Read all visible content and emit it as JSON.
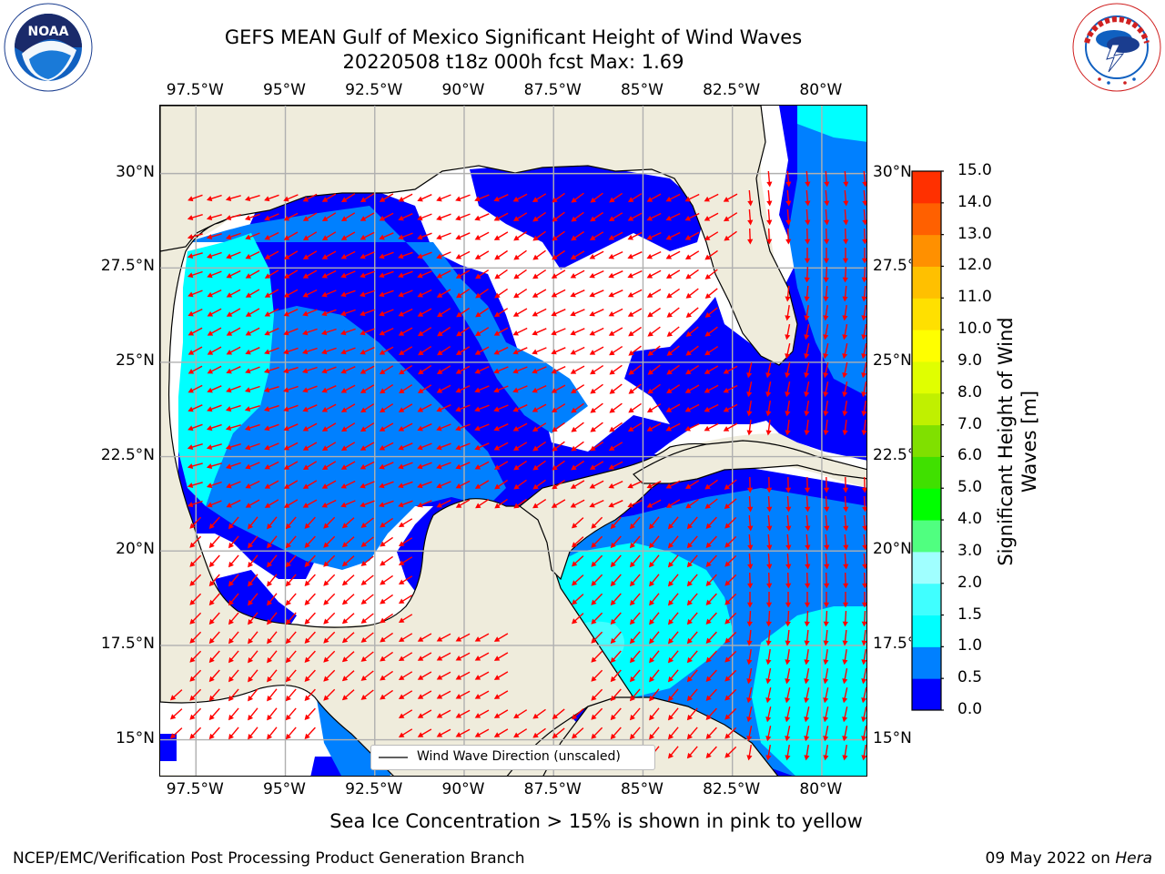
{
  "title": {
    "line1": "GEFS MEAN Gulf of Mexico Significant Height of Wind Waves",
    "line2": "20220508 t18z 000h fcst   Max: 1.69"
  },
  "logos": {
    "left": {
      "text": "NOAA",
      "ring_text": "NATIONAL OCEANIC AND ATMOSPHERIC ADMINISTRATION · U.S. DEPARTMENT OF COMMERCE"
    },
    "right": {
      "ring_text": "NATIONAL WEATHER SERVICE"
    }
  },
  "map": {
    "lon_range": [
      -98.5,
      -78.7
    ],
    "lat_range": [
      14.0,
      31.8
    ],
    "lon_ticks": [
      "97.5°W",
      "95°W",
      "92.5°W",
      "90°W",
      "87.5°W",
      "85°W",
      "82.5°W",
      "80°W"
    ],
    "lon_tick_values": [
      -97.5,
      -95,
      -92.5,
      -90,
      -87.5,
      -85,
      -82.5,
      -80
    ],
    "lat_ticks": [
      "15°N",
      "17.5°N",
      "20°N",
      "22.5°N",
      "25°N",
      "27.5°N",
      "30°N"
    ],
    "lat_tick_values": [
      15,
      17.5,
      20,
      22.5,
      25,
      27.5,
      30
    ],
    "gridlines": true,
    "colors": {
      "land": "#efecdc",
      "ocean_none": "#ffffff",
      "arrows": "#ff0000",
      "grid": "#b0b0b0"
    }
  },
  "legend": {
    "label": "Wind Wave Direction (unscaled)",
    "placement": "bottom-center"
  },
  "colorbar": {
    "label": "Significant Height of Wind Waves [m]",
    "ticks": [
      "0.0",
      "0.5",
      "1.0",
      "1.5",
      "2.0",
      "3.0",
      "4.0",
      "5.0",
      "6.0",
      "7.0",
      "8.0",
      "9.0",
      "10.0",
      "11.0",
      "12.0",
      "13.0",
      "14.0",
      "15.0"
    ],
    "colors": [
      "#0000ff",
      "#0080ff",
      "#00ffff",
      "#40ffff",
      "#a0ffff",
      "#50ff80",
      "#00ff00",
      "#40e000",
      "#80e000",
      "#c0f000",
      "#e0ff00",
      "#ffff00",
      "#ffe000",
      "#ffc000",
      "#ff9000",
      "#ff6000",
      "#ff3000",
      "#ff0000"
    ]
  },
  "subtitle": "Sea Ice Concentration > 15% is shown in pink to yellow",
  "footer": {
    "left": "NCEP/EMC/Verification Post Processing Product Generation Branch",
    "date": "09 May 2022 on ",
    "machine": "Hera"
  }
}
